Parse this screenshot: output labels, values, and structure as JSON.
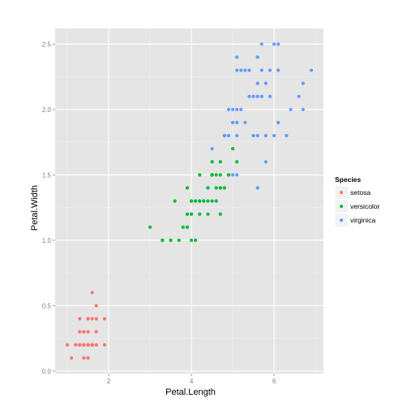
{
  "chart_data": {
    "type": "scatter",
    "xlabel": "Petal.Length",
    "ylabel": "Petal.Width",
    "xlim": [
      0.705,
      7.195
    ],
    "ylim": [
      -0.02,
      2.62
    ],
    "x_ticks": [
      2,
      4,
      6
    ],
    "x_tick_labels": [
      "2",
      "4",
      "6"
    ],
    "y_ticks": [
      0.0,
      0.5,
      1.0,
      1.5,
      2.0,
      2.5
    ],
    "y_tick_labels": [
      "0.0",
      "0.5",
      "1.0",
      "1.5",
      "2.0",
      "2.5"
    ],
    "grid": true,
    "legend": {
      "title": "Species",
      "position": "right"
    },
    "series": [
      {
        "name": "setosa",
        "color": "#F8766D",
        "points": [
          [
            1.4,
            0.2
          ],
          [
            1.4,
            0.2
          ],
          [
            1.3,
            0.2
          ],
          [
            1.5,
            0.2
          ],
          [
            1.4,
            0.2
          ],
          [
            1.7,
            0.4
          ],
          [
            1.4,
            0.3
          ],
          [
            1.5,
            0.2
          ],
          [
            1.4,
            0.2
          ],
          [
            1.5,
            0.1
          ],
          [
            1.5,
            0.2
          ],
          [
            1.6,
            0.2
          ],
          [
            1.4,
            0.1
          ],
          [
            1.1,
            0.1
          ],
          [
            1.2,
            0.2
          ],
          [
            1.5,
            0.4
          ],
          [
            1.3,
            0.4
          ],
          [
            1.4,
            0.3
          ],
          [
            1.7,
            0.3
          ],
          [
            1.5,
            0.3
          ],
          [
            1.7,
            0.2
          ],
          [
            1.5,
            0.4
          ],
          [
            1.0,
            0.2
          ],
          [
            1.7,
            0.5
          ],
          [
            1.9,
            0.2
          ],
          [
            1.6,
            0.2
          ],
          [
            1.6,
            0.4
          ],
          [
            1.5,
            0.2
          ],
          [
            1.4,
            0.2
          ],
          [
            1.6,
            0.2
          ],
          [
            1.6,
            0.2
          ],
          [
            1.5,
            0.4
          ],
          [
            1.5,
            0.1
          ],
          [
            1.4,
            0.2
          ],
          [
            1.5,
            0.2
          ],
          [
            1.2,
            0.2
          ],
          [
            1.3,
            0.2
          ],
          [
            1.4,
            0.1
          ],
          [
            1.3,
            0.2
          ],
          [
            1.5,
            0.2
          ],
          [
            1.3,
            0.3
          ],
          [
            1.3,
            0.3
          ],
          [
            1.3,
            0.2
          ],
          [
            1.6,
            0.6
          ],
          [
            1.9,
            0.4
          ],
          [
            1.4,
            0.3
          ],
          [
            1.6,
            0.2
          ],
          [
            1.4,
            0.2
          ],
          [
            1.5,
            0.2
          ],
          [
            1.4,
            0.2
          ]
        ]
      },
      {
        "name": "versicolor",
        "color": "#00BA38",
        "points": [
          [
            4.7,
            1.4
          ],
          [
            4.5,
            1.5
          ],
          [
            4.9,
            1.5
          ],
          [
            4.0,
            1.3
          ],
          [
            4.6,
            1.5
          ],
          [
            4.5,
            1.3
          ],
          [
            4.7,
            1.6
          ],
          [
            3.3,
            1.0
          ],
          [
            4.6,
            1.3
          ],
          [
            3.9,
            1.4
          ],
          [
            3.5,
            1.0
          ],
          [
            4.2,
            1.5
          ],
          [
            4.0,
            1.0
          ],
          [
            4.7,
            1.4
          ],
          [
            3.6,
            1.3
          ],
          [
            4.4,
            1.4
          ],
          [
            4.5,
            1.5
          ],
          [
            4.1,
            1.0
          ],
          [
            4.5,
            1.5
          ],
          [
            3.9,
            1.1
          ],
          [
            4.8,
            1.8
          ],
          [
            4.0,
            1.3
          ],
          [
            4.9,
            1.5
          ],
          [
            4.7,
            1.2
          ],
          [
            4.3,
            1.3
          ],
          [
            4.4,
            1.4
          ],
          [
            4.8,
            1.4
          ],
          [
            5.0,
            1.7
          ],
          [
            4.5,
            1.5
          ],
          [
            3.5,
            1.0
          ],
          [
            3.8,
            1.1
          ],
          [
            3.7,
            1.0
          ],
          [
            3.9,
            1.2
          ],
          [
            5.1,
            1.6
          ],
          [
            4.5,
            1.5
          ],
          [
            4.5,
            1.6
          ],
          [
            4.7,
            1.5
          ],
          [
            4.4,
            1.3
          ],
          [
            4.1,
            1.3
          ],
          [
            4.0,
            1.3
          ],
          [
            4.4,
            1.2
          ],
          [
            4.6,
            1.4
          ],
          [
            4.0,
            1.2
          ],
          [
            3.3,
            1.0
          ],
          [
            4.2,
            1.3
          ],
          [
            4.2,
            1.2
          ],
          [
            4.2,
            1.3
          ],
          [
            4.3,
            1.3
          ],
          [
            3.0,
            1.1
          ],
          [
            4.1,
            1.3
          ]
        ]
      },
      {
        "name": "virginica",
        "color": "#619CFF",
        "points": [
          [
            6.0,
            2.5
          ],
          [
            5.1,
            1.9
          ],
          [
            5.9,
            2.1
          ],
          [
            5.6,
            1.8
          ],
          [
            5.8,
            2.2
          ],
          [
            6.6,
            2.1
          ],
          [
            4.5,
            1.7
          ],
          [
            6.3,
            1.8
          ],
          [
            5.8,
            1.8
          ],
          [
            6.1,
            2.5
          ],
          [
            5.1,
            2.0
          ],
          [
            5.3,
            1.9
          ],
          [
            5.5,
            2.1
          ],
          [
            5.0,
            2.0
          ],
          [
            5.1,
            2.4
          ],
          [
            5.3,
            2.3
          ],
          [
            5.5,
            1.8
          ],
          [
            6.7,
            2.2
          ],
          [
            6.9,
            2.3
          ],
          [
            5.0,
            1.5
          ],
          [
            5.7,
            2.3
          ],
          [
            4.9,
            2.0
          ],
          [
            6.7,
            2.0
          ],
          [
            4.9,
            1.8
          ],
          [
            5.7,
            2.1
          ],
          [
            6.0,
            1.8
          ],
          [
            4.8,
            1.8
          ],
          [
            4.9,
            1.8
          ],
          [
            5.6,
            2.1
          ],
          [
            5.8,
            1.6
          ],
          [
            6.1,
            1.9
          ],
          [
            6.4,
            2.0
          ],
          [
            5.6,
            2.2
          ],
          [
            5.1,
            1.5
          ],
          [
            5.6,
            1.4
          ],
          [
            6.1,
            2.3
          ],
          [
            5.6,
            2.4
          ],
          [
            5.5,
            1.8
          ],
          [
            4.8,
            1.8
          ],
          [
            5.4,
            2.1
          ],
          [
            5.6,
            2.4
          ],
          [
            5.1,
            2.3
          ],
          [
            5.1,
            1.9
          ],
          [
            5.9,
            2.3
          ],
          [
            5.7,
            2.5
          ],
          [
            5.2,
            2.3
          ],
          [
            5.0,
            1.9
          ],
          [
            5.2,
            2.0
          ],
          [
            5.4,
            2.3
          ],
          [
            5.1,
            1.8
          ]
        ]
      }
    ]
  }
}
